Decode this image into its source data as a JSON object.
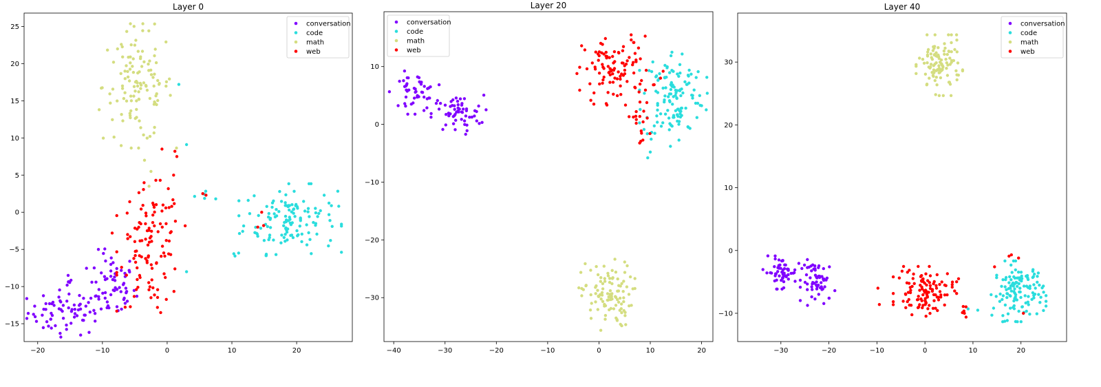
{
  "colors": {
    "conversation": "#8000ff",
    "code": "#2adddd",
    "math": "#d4dd80",
    "web": "#ff0000"
  },
  "legend_entries": [
    "conversation",
    "code",
    "math",
    "web"
  ],
  "chart_data": [
    {
      "type": "scatter",
      "title": "Layer 0",
      "xlim": [
        -22.1,
        28.6
      ],
      "ylim": [
        -17.4,
        26.8
      ],
      "xticks": [
        -20,
        -10,
        0,
        10,
        20
      ],
      "yticks": [
        -15,
        -10,
        -5,
        0,
        5,
        10,
        15,
        20,
        25
      ],
      "legend": "upper right",
      "series": [
        {
          "name": "conversation",
          "clusters": [
            {
              "cx": -15.5,
              "cy": -13.5,
              "sx": 3.0,
              "sy": 1.5,
              "n": 70
            },
            {
              "cx": -8.5,
              "cy": -10.0,
              "sx": 1.8,
              "sy": 2.3,
              "n": 60
            },
            {
              "cx": -15.5,
              "cy": -8.8,
              "sx": 0.6,
              "sy": 0.6,
              "n": 6
            }
          ]
        },
        {
          "name": "code",
          "clusters": [
            {
              "cx": 19.0,
              "cy": -1.0,
              "sx": 3.6,
              "sy": 2.2,
              "n": 130
            },
            {
              "cx": 5.5,
              "cy": 2.2,
              "sx": 1.2,
              "sy": 0.8,
              "n": 4
            },
            {
              "cx": 10.5,
              "cy": -5.4,
              "sx": 0.4,
              "sy": 0.4,
              "n": 3
            }
          ],
          "points": [
            [
              1.8,
              17.2
            ],
            [
              3.0,
              9.1
            ],
            [
              3.0,
              -8.0
            ],
            [
              7.5,
              1.8
            ]
          ]
        },
        {
          "name": "math",
          "clusters": [
            {
              "cx": -4.5,
              "cy": 17.0,
              "sx": 2.7,
              "sy": 3.8,
              "n": 120
            }
          ],
          "points": [
            [
              -10.5,
              13.8
            ],
            [
              -2.5,
              5.5
            ],
            [
              -2.8,
              3.5
            ],
            [
              -3.5,
              7.0
            ]
          ]
        },
        {
          "name": "web",
          "clusters": [
            {
              "cx": -2.5,
              "cy": -4.5,
              "sx": 2.4,
              "sy": 4.0,
              "n": 110
            }
          ],
          "points": [
            [
              1.2,
              8.2
            ],
            [
              -0.8,
              8.5
            ],
            [
              1.5,
              7.5
            ],
            [
              1.0,
              5.0
            ],
            [
              5.5,
              2.5
            ],
            [
              6.0,
              2.3
            ],
            [
              14.0,
              -2.0
            ],
            [
              14.6,
              0.0
            ],
            [
              14.9,
              -1.8
            ],
            [
              -8.5,
              -2.8
            ],
            [
              -1.5,
              -12.8
            ],
            [
              -1.0,
              -13.5
            ],
            [
              -2.5,
              -11.5
            ]
          ]
        }
      ]
    },
    {
      "type": "scatter",
      "title": "Layer 20",
      "xlim": [
        -41.9,
        22.2
      ],
      "ylim": [
        -37.6,
        19.5
      ],
      "xticks": [
        -40,
        -30,
        -20,
        -10,
        0,
        10,
        20
      ],
      "yticks": [
        -30,
        -20,
        -10,
        0,
        10
      ],
      "legend": "upper left",
      "series": [
        {
          "name": "conversation",
          "clusters": [
            {
              "cx": -36.0,
              "cy": 5.5,
              "sx": 2.2,
              "sy": 1.7,
              "n": 50
            },
            {
              "cx": -27.5,
              "cy": 1.8,
              "sx": 2.5,
              "sy": 1.6,
              "n": 60
            }
          ]
        },
        {
          "name": "code",
          "clusters": [
            {
              "cx": 14.5,
              "cy": 5.0,
              "sx": 3.0,
              "sy": 4.0,
              "n": 130
            }
          ],
          "points": [
            [
              9.5,
              -5.8
            ],
            [
              10.0,
              -4.8
            ]
          ]
        },
        {
          "name": "math",
          "clusters": [
            {
              "cx": 1.5,
              "cy": -29.5,
              "sx": 2.5,
              "sy": 2.8,
              "n": 110
            }
          ]
        },
        {
          "name": "web",
          "clusters": [
            {
              "cx": 3.5,
              "cy": 9.5,
              "sx": 3.3,
              "sy": 2.8,
              "n": 100
            },
            {
              "cx": 7.8,
              "cy": 0.5,
              "sx": 1.0,
              "sy": 2.0,
              "n": 18
            }
          ],
          "points": [
            [
              -4.3,
              8.8
            ],
            [
              -1.0,
              3.5
            ],
            [
              12.0,
              8.0
            ],
            [
              12.5,
              9.2
            ]
          ]
        }
      ]
    },
    {
      "type": "scatter",
      "title": "Layer 40",
      "xlim": [
        -39.0,
        29.5
      ],
      "ylim": [
        -14.5,
        37.8
      ],
      "xticks": [
        -30,
        -20,
        -10,
        0,
        10,
        20
      ],
      "yticks": [
        -10,
        0,
        10,
        20,
        30
      ],
      "legend": "upper right",
      "series": [
        {
          "name": "conversation",
          "clusters": [
            {
              "cx": -30.0,
              "cy": -3.5,
              "sx": 1.7,
              "sy": 1.2,
              "n": 55
            },
            {
              "cx": -22.0,
              "cy": -5.0,
              "sx": 1.8,
              "sy": 1.7,
              "n": 60
            }
          ]
        },
        {
          "name": "code",
          "clusters": [
            {
              "cx": 19.5,
              "cy": -6.5,
              "sx": 2.6,
              "sy": 2.2,
              "n": 130
            }
          ],
          "points": [
            [
              9.0,
              -9.3
            ],
            [
              11.0,
              -9.5
            ]
          ]
        },
        {
          "name": "math",
          "clusters": [
            {
              "cx": 3.0,
              "cy": 29.5,
              "sx": 2.2,
              "sy": 2.2,
              "n": 110
            }
          ]
        },
        {
          "name": "web",
          "clusters": [
            {
              "cx": 0.0,
              "cy": -6.5,
              "sx": 3.0,
              "sy": 1.8,
              "n": 110
            },
            {
              "cx": 8.0,
              "cy": -9.7,
              "sx": 0.3,
              "sy": 0.5,
              "n": 6
            }
          ],
          "points": [
            [
              -9.5,
              -8.6
            ],
            [
              -9.8,
              -6.0
            ],
            [
              7.0,
              -4.5
            ],
            [
              14.5,
              -2.6
            ],
            [
              17.5,
              -0.9
            ],
            [
              18.0,
              -0.7
            ],
            [
              19.5,
              -1.2
            ],
            [
              20.5,
              -10.0
            ]
          ]
        }
      ]
    }
  ]
}
